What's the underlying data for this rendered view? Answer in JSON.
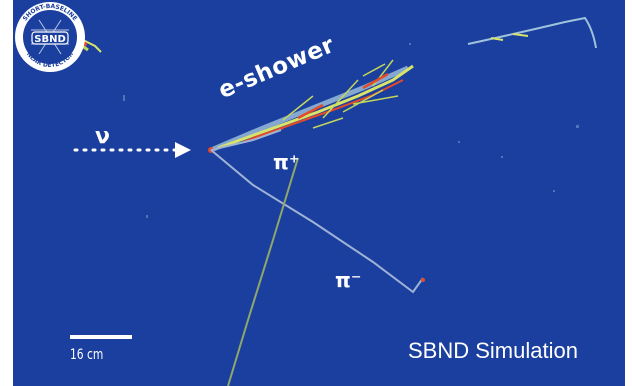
{
  "labels": {
    "shower": "e-shower",
    "neutrino": "ν",
    "pi_plus": "π⁺",
    "pi_minus": "π⁻",
    "scale": "16 cm",
    "simulation": "SBND Simulation"
  },
  "logo": {
    "center_text": "SBND",
    "ring_text_top": "SHORT-BASELINE",
    "ring_text_bottom": "NEAR DETECTOR"
  },
  "colors": {
    "background": "#1b3f9e",
    "track": "#9fb3d6",
    "shower_core": "#e34a2a",
    "shower_halo": "#d8e36a"
  }
}
